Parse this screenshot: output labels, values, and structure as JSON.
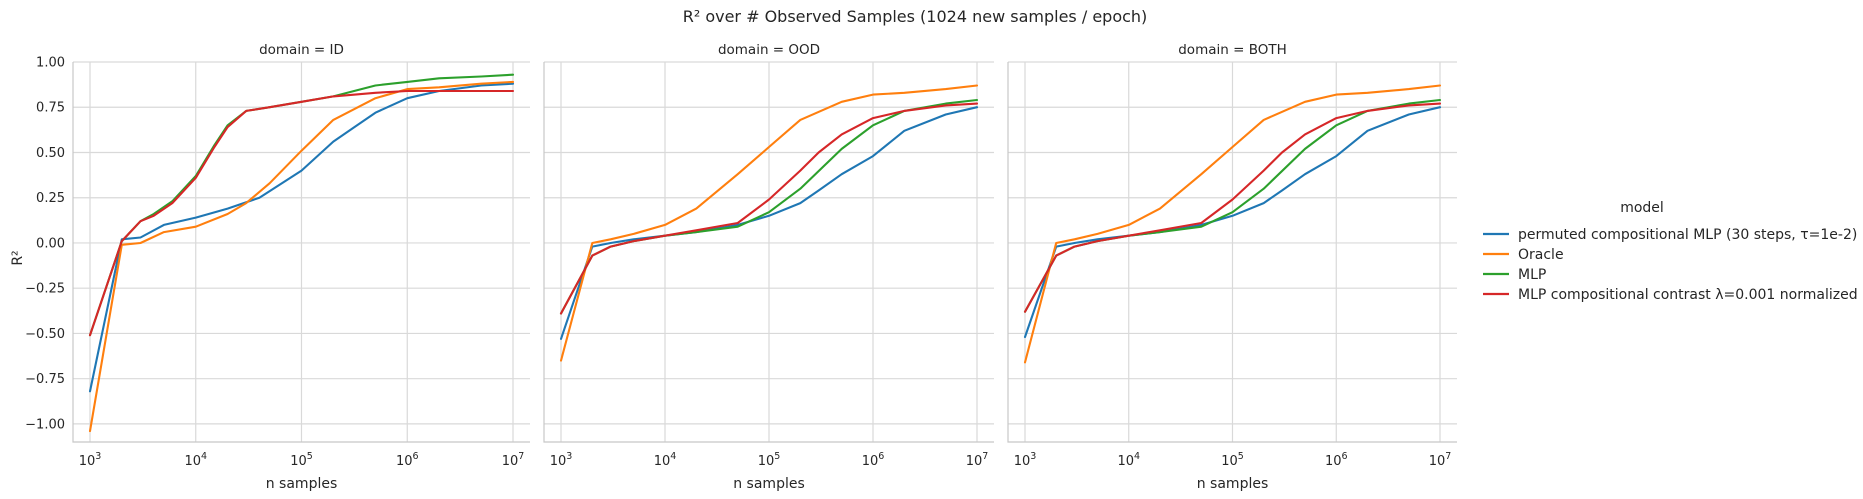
{
  "chart_data": {
    "type": "line",
    "title": "R² over # Observed Samples (1024 new samples / epoch)",
    "xlabel": "n samples",
    "ylabel": "R²",
    "xscale": "log",
    "xlim": [
      1000,
      10000000
    ],
    "ylim": [
      -1.1,
      1.0
    ],
    "x_ticks": [
      {
        "value": 1000,
        "base": "10",
        "exp": "3"
      },
      {
        "value": 10000,
        "base": "10",
        "exp": "4"
      },
      {
        "value": 100000,
        "base": "10",
        "exp": "5"
      },
      {
        "value": 1000000,
        "base": "10",
        "exp": "6"
      },
      {
        "value": 10000000,
        "base": "10",
        "exp": "7"
      }
    ],
    "y_ticks": [
      {
        "value": 1.0,
        "label": "1.00"
      },
      {
        "value": 0.75,
        "label": "0.75"
      },
      {
        "value": 0.5,
        "label": "0.50"
      },
      {
        "value": 0.25,
        "label": "0.25"
      },
      {
        "value": 0.0,
        "label": "0.00"
      },
      {
        "value": -0.25,
        "label": "−0.25"
      },
      {
        "value": -0.5,
        "label": "−0.50"
      },
      {
        "value": -0.75,
        "label": "−0.75"
      },
      {
        "value": -1.0,
        "label": "−1.00"
      }
    ],
    "grid": true,
    "legend": {
      "title": "model",
      "placement": "right",
      "entries": [
        {
          "name": "permuted compositional MLP (30 steps, τ=1e-2)",
          "color": "#1f77b4"
        },
        {
          "name": "Oracle",
          "color": "#ff7f0e"
        },
        {
          "name": "MLP",
          "color": "#2ca02c"
        },
        {
          "name": "MLP compositional contrast λ=0.001 normalized",
          "color": "#d62728"
        }
      ]
    },
    "panels": [
      {
        "title": "domain = ID",
        "series": [
          {
            "name": "permuted compositional MLP (30 steps, τ=1e-2)",
            "color": "#1f77b4",
            "points": [
              [
                1000,
                -0.82
              ],
              [
                2000,
                0.02
              ],
              [
                3000,
                0.03
              ],
              [
                5000,
                0.1
              ],
              [
                10000,
                0.14
              ],
              [
                20000,
                0.19
              ],
              [
                40000,
                0.25
              ],
              [
                100000,
                0.4
              ],
              [
                200000,
                0.56
              ],
              [
                500000,
                0.72
              ],
              [
                1000000,
                0.8
              ],
              [
                2000000,
                0.84
              ],
              [
                5000000,
                0.87
              ],
              [
                10000000,
                0.88
              ]
            ]
          },
          {
            "name": "Oracle",
            "color": "#ff7f0e",
            "points": [
              [
                1000,
                -1.04
              ],
              [
                2000,
                -0.01
              ],
              [
                3000,
                0.0
              ],
              [
                5000,
                0.06
              ],
              [
                10000,
                0.09
              ],
              [
                20000,
                0.16
              ],
              [
                30000,
                0.22
              ],
              [
                50000,
                0.33
              ],
              [
                100000,
                0.51
              ],
              [
                200000,
                0.68
              ],
              [
                500000,
                0.8
              ],
              [
                1000000,
                0.85
              ],
              [
                2000000,
                0.86
              ],
              [
                5000000,
                0.88
              ],
              [
                10000000,
                0.89
              ]
            ]
          },
          {
            "name": "MLP",
            "color": "#2ca02c",
            "points": [
              [
                1000,
                -0.51
              ],
              [
                2000,
                0.01
              ],
              [
                3000,
                0.12
              ],
              [
                4000,
                0.16
              ],
              [
                6000,
                0.23
              ],
              [
                10000,
                0.37
              ],
              [
                15000,
                0.54
              ],
              [
                20000,
                0.65
              ],
              [
                30000,
                0.73
              ],
              [
                50000,
                0.75
              ],
              [
                100000,
                0.78
              ],
              [
                200000,
                0.81
              ],
              [
                500000,
                0.87
              ],
              [
                1000000,
                0.89
              ],
              [
                2000000,
                0.91
              ],
              [
                5000000,
                0.92
              ],
              [
                10000000,
                0.93
              ]
            ]
          },
          {
            "name": "MLP compositional contrast λ=0.001 normalized",
            "color": "#d62728",
            "points": [
              [
                1000,
                -0.51
              ],
              [
                2000,
                0.01
              ],
              [
                3000,
                0.12
              ],
              [
                4000,
                0.15
              ],
              [
                6000,
                0.22
              ],
              [
                10000,
                0.36
              ],
              [
                15000,
                0.53
              ],
              [
                20000,
                0.64
              ],
              [
                30000,
                0.73
              ],
              [
                50000,
                0.75
              ],
              [
                100000,
                0.78
              ],
              [
                200000,
                0.81
              ],
              [
                500000,
                0.83
              ],
              [
                1000000,
                0.84
              ],
              [
                2000000,
                0.84
              ],
              [
                5000000,
                0.84
              ],
              [
                10000000,
                0.84
              ]
            ]
          }
        ]
      },
      {
        "title": "domain = OOD",
        "series": [
          {
            "name": "permuted compositional MLP (30 steps, τ=1e-2)",
            "color": "#1f77b4",
            "points": [
              [
                1000,
                -0.53
              ],
              [
                2000,
                -0.02
              ],
              [
                3000,
                0.0
              ],
              [
                5000,
                0.02
              ],
              [
                10000,
                0.04
              ],
              [
                20000,
                0.06
              ],
              [
                50000,
                0.1
              ],
              [
                100000,
                0.15
              ],
              [
                200000,
                0.22
              ],
              [
                300000,
                0.29
              ],
              [
                500000,
                0.38
              ],
              [
                1000000,
                0.48
              ],
              [
                2000000,
                0.62
              ],
              [
                5000000,
                0.71
              ],
              [
                10000000,
                0.75
              ]
            ]
          },
          {
            "name": "Oracle",
            "color": "#ff7f0e",
            "points": [
              [
                1000,
                -0.65
              ],
              [
                2000,
                0.0
              ],
              [
                3000,
                0.02
              ],
              [
                5000,
                0.05
              ],
              [
                10000,
                0.1
              ],
              [
                20000,
                0.19
              ],
              [
                50000,
                0.38
              ],
              [
                100000,
                0.53
              ],
              [
                200000,
                0.68
              ],
              [
                500000,
                0.78
              ],
              [
                1000000,
                0.82
              ],
              [
                2000000,
                0.83
              ],
              [
                5000000,
                0.85
              ],
              [
                10000000,
                0.87
              ]
            ]
          },
          {
            "name": "MLP",
            "color": "#2ca02c",
            "points": [
              [
                1000,
                -0.39
              ],
              [
                2000,
                -0.07
              ],
              [
                3000,
                -0.02
              ],
              [
                5000,
                0.01
              ],
              [
                10000,
                0.04
              ],
              [
                20000,
                0.06
              ],
              [
                50000,
                0.09
              ],
              [
                100000,
                0.17
              ],
              [
                200000,
                0.3
              ],
              [
                500000,
                0.52
              ],
              [
                1000000,
                0.65
              ],
              [
                2000000,
                0.73
              ],
              [
                5000000,
                0.77
              ],
              [
                10000000,
                0.79
              ]
            ]
          },
          {
            "name": "MLP compositional contrast λ=0.001 normalized",
            "color": "#d62728",
            "points": [
              [
                1000,
                -0.39
              ],
              [
                2000,
                -0.07
              ],
              [
                3000,
                -0.02
              ],
              [
                5000,
                0.01
              ],
              [
                10000,
                0.04
              ],
              [
                20000,
                0.07
              ],
              [
                50000,
                0.11
              ],
              [
                100000,
                0.24
              ],
              [
                200000,
                0.4
              ],
              [
                300000,
                0.5
              ],
              [
                500000,
                0.6
              ],
              [
                1000000,
                0.69
              ],
              [
                2000000,
                0.73
              ],
              [
                5000000,
                0.76
              ],
              [
                10000000,
                0.77
              ]
            ]
          }
        ]
      },
      {
        "title": "domain = BOTH",
        "series": [
          {
            "name": "permuted compositional MLP (30 steps, τ=1e-2)",
            "color": "#1f77b4",
            "points": [
              [
                1000,
                -0.52
              ],
              [
                2000,
                -0.02
              ],
              [
                3000,
                0.0
              ],
              [
                5000,
                0.02
              ],
              [
                10000,
                0.04
              ],
              [
                20000,
                0.06
              ],
              [
                50000,
                0.1
              ],
              [
                100000,
                0.15
              ],
              [
                200000,
                0.22
              ],
              [
                300000,
                0.29
              ],
              [
                500000,
                0.38
              ],
              [
                1000000,
                0.48
              ],
              [
                2000000,
                0.62
              ],
              [
                5000000,
                0.71
              ],
              [
                10000000,
                0.75
              ]
            ]
          },
          {
            "name": "Oracle",
            "color": "#ff7f0e",
            "points": [
              [
                1000,
                -0.66
              ],
              [
                2000,
                0.0
              ],
              [
                3000,
                0.02
              ],
              [
                5000,
                0.05
              ],
              [
                10000,
                0.1
              ],
              [
                20000,
                0.19
              ],
              [
                50000,
                0.38
              ],
              [
                100000,
                0.53
              ],
              [
                200000,
                0.68
              ],
              [
                500000,
                0.78
              ],
              [
                1000000,
                0.82
              ],
              [
                2000000,
                0.83
              ],
              [
                5000000,
                0.85
              ],
              [
                10000000,
                0.87
              ]
            ]
          },
          {
            "name": "MLP",
            "color": "#2ca02c",
            "points": [
              [
                1000,
                -0.38
              ],
              [
                2000,
                -0.07
              ],
              [
                3000,
                -0.02
              ],
              [
                5000,
                0.01
              ],
              [
                10000,
                0.04
              ],
              [
                20000,
                0.06
              ],
              [
                50000,
                0.09
              ],
              [
                100000,
                0.17
              ],
              [
                200000,
                0.3
              ],
              [
                500000,
                0.52
              ],
              [
                1000000,
                0.65
              ],
              [
                2000000,
                0.73
              ],
              [
                5000000,
                0.77
              ],
              [
                10000000,
                0.79
              ]
            ]
          },
          {
            "name": "MLP compositional contrast λ=0.001 normalized",
            "color": "#d62728",
            "points": [
              [
                1000,
                -0.38
              ],
              [
                2000,
                -0.07
              ],
              [
                3000,
                -0.02
              ],
              [
                5000,
                0.01
              ],
              [
                10000,
                0.04
              ],
              [
                20000,
                0.07
              ],
              [
                50000,
                0.11
              ],
              [
                100000,
                0.24
              ],
              [
                200000,
                0.4
              ],
              [
                300000,
                0.5
              ],
              [
                500000,
                0.6
              ],
              [
                1000000,
                0.69
              ],
              [
                2000000,
                0.73
              ],
              [
                5000000,
                0.76
              ],
              [
                10000000,
                0.77
              ]
            ]
          }
        ]
      }
    ]
  }
}
